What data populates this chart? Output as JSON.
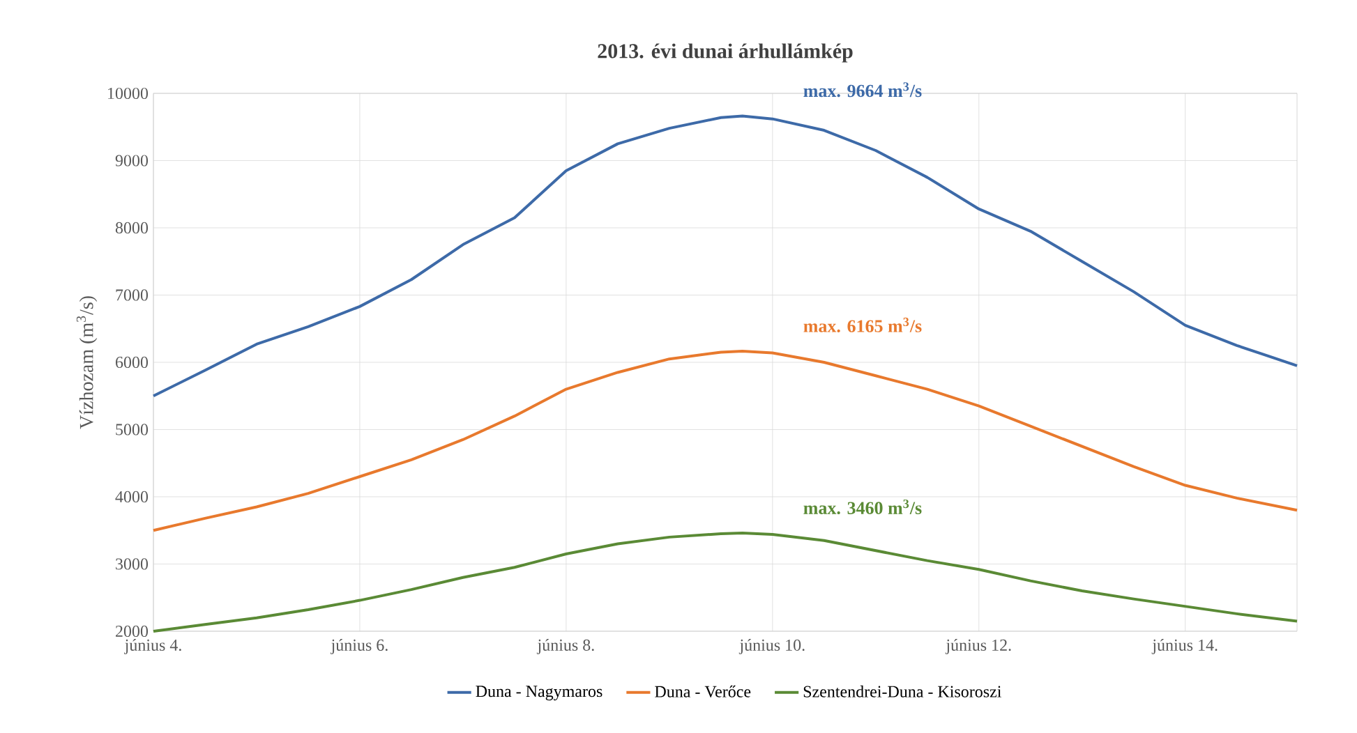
{
  "chart_data": {
    "type": "line",
    "title": "2013. évi dunai árhullámkép",
    "ylabel": "Vízhozam (m$^{3}$/s)",
    "xlim": [
      "2013-06-04",
      "2013-06-15T02:00"
    ],
    "ylim": [
      2000,
      10000
    ],
    "xticks": [
      {
        "value": "2013-06-04",
        "label": "június 4."
      },
      {
        "value": "2013-06-06",
        "label": "június 6."
      },
      {
        "value": "2013-06-08",
        "label": "június 8."
      },
      {
        "value": "2013-06-10",
        "label": "június 10."
      },
      {
        "value": "2013-06-12",
        "label": "június 12."
      },
      {
        "value": "2013-06-14",
        "label": "június 14."
      }
    ],
    "yticks": [
      2000,
      3000,
      4000,
      5000,
      6000,
      7000,
      8000,
      9000,
      10000
    ],
    "grid": true,
    "legend": "bottom",
    "marker": "none",
    "line_style": "solid",
    "x": [
      "2013-06-04",
      "2013-06-04T12:00",
      "2013-06-05",
      "2013-06-05T12:00",
      "2013-06-06",
      "2013-06-06T12:00",
      "2013-06-07",
      "2013-06-07T12:00",
      "2013-06-08",
      "2013-06-08T12:00",
      "2013-06-09",
      "2013-06-09T12:00",
      "2013-06-09T17:00",
      "2013-06-10",
      "2013-06-10T12:00",
      "2013-06-11",
      "2013-06-11T12:00",
      "2013-06-12",
      "2013-06-12T12:00",
      "2013-06-13",
      "2013-06-13T12:00",
      "2013-06-14",
      "2013-06-14T12:00",
      "2013-06-15T02:00"
    ],
    "series": [
      {
        "name": "Duna - Nagymaros",
        "color": "#3d6aa8",
        "values": [
          5500,
          5880,
          6270,
          6530,
          6830,
          7230,
          7750,
          8150,
          8850,
          9250,
          9480,
          9640,
          9664,
          9620,
          9450,
          9150,
          8750,
          8280,
          7950,
          7500,
          7050,
          6550,
          6250,
          5950
        ]
      },
      {
        "name": "Duna - Verőce",
        "color": "#e8792d",
        "values": [
          3500,
          3680,
          3850,
          4050,
          4300,
          4550,
          4850,
          5200,
          5600,
          5850,
          6050,
          6150,
          6165,
          6140,
          6000,
          5800,
          5600,
          5350,
          5050,
          4750,
          4450,
          4170,
          3980,
          3800
        ]
      },
      {
        "name": "Szentendrei-Duna - Kisoroszi",
        "color": "#5a8a35",
        "values": [
          2000,
          2100,
          2200,
          2320,
          2460,
          2620,
          2800,
          2950,
          3150,
          3300,
          3400,
          3450,
          3460,
          3440,
          3350,
          3200,
          3050,
          2920,
          2750,
          2600,
          2480,
          2370,
          2260,
          2150
        ]
      }
    ],
    "annotations": [
      "max. 9664 m$^{3}$/s",
      "max. 6165 m$^{3}$/s",
      "max. 3460 m$^{3}$/s"
    ]
  }
}
